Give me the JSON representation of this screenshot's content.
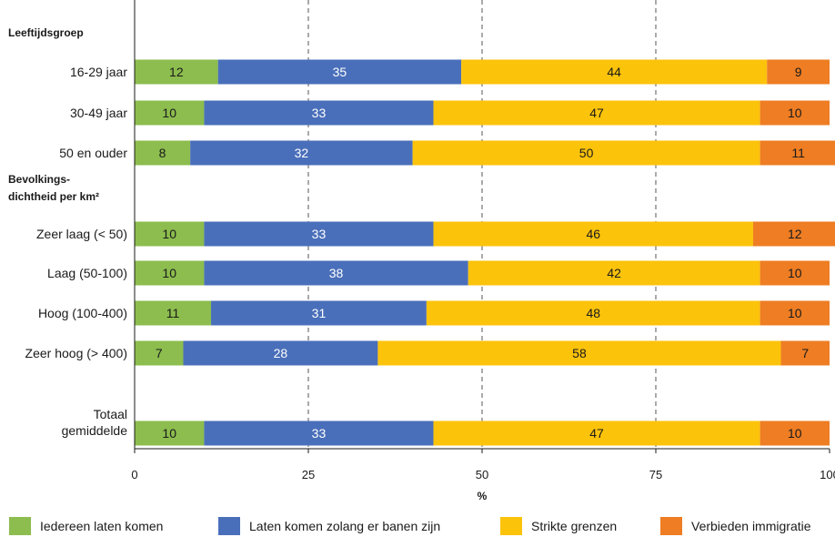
{
  "chart_data": {
    "type": "bar",
    "orientation": "horizontal",
    "stacked": true,
    "xlabel": "%",
    "xlim": [
      0,
      100
    ],
    "xticks": [
      0,
      25,
      50,
      75,
      100
    ],
    "grid": "dashed vertical lines at 25, 50, 75",
    "legend_position": "bottom",
    "groups": [
      {
        "label": "Leeftijdsgroep",
        "categories": [
          "16-29 jaar",
          "30-49 jaar",
          "50 en ouder"
        ]
      },
      {
        "label": "Bevolkings-\ndichtheid per km²",
        "categories": [
          "Zeer laag (< 50)",
          "Laag (50-100)",
          "Hoog (100-400)",
          "Zeer hoog (> 400)"
        ]
      },
      {
        "label": "",
        "categories": [
          "Totaal gemiddelde"
        ]
      }
    ],
    "categories": [
      "16-29 jaar",
      "30-49 jaar",
      "50 en ouder",
      "Zeer laag (< 50)",
      "Laag (50-100)",
      "Hoog (100-400)",
      "Zeer hoog (> 400)",
      "Totaal gemiddelde"
    ],
    "series": [
      {
        "name": "Iedereen laten komen",
        "color": "#8cbd4e",
        "label_color": "#1a1a1a",
        "values": [
          12,
          10,
          8,
          10,
          10,
          11,
          7,
          10
        ]
      },
      {
        "name": "Laten komen zolang er banen zijn",
        "color": "#4a6fba",
        "label_color": "#ffffff",
        "values": [
          35,
          33,
          32,
          33,
          38,
          31,
          28,
          33
        ]
      },
      {
        "name": "Strikte grenzen",
        "color": "#fcc30b",
        "label_color": "#1a1a1a",
        "values": [
          44,
          47,
          50,
          46,
          42,
          48,
          58,
          47
        ]
      },
      {
        "name": "Verbieden immigratie",
        "color": "#ee7d23",
        "label_color": "#1a1a1a",
        "values": [
          9,
          10,
          11,
          12,
          10,
          10,
          7,
          10
        ]
      }
    ]
  }
}
